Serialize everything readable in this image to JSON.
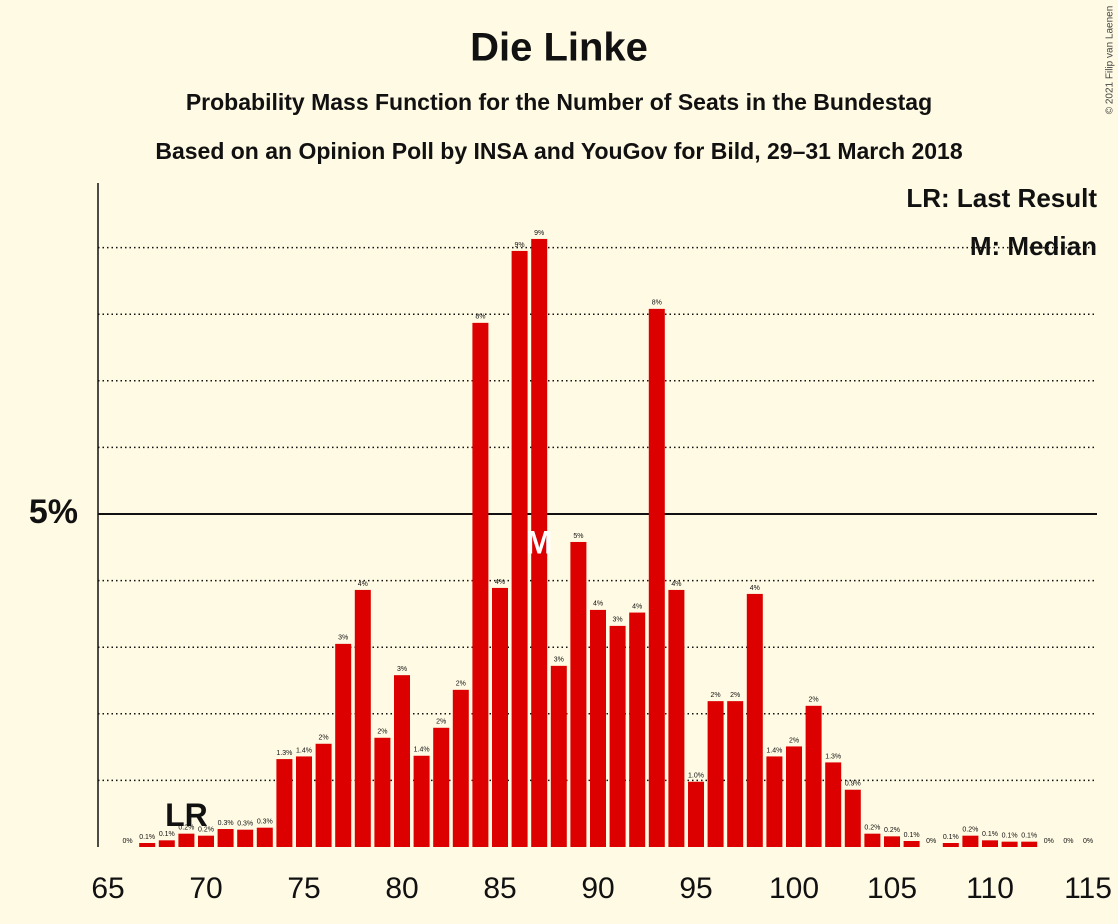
{
  "chart_data": {
    "type": "bar",
    "title": "Die Linke",
    "subtitle": "Probability Mass Function for the Number of Seats in the Bundestag",
    "subtitle2": "Based on an Opinion Poll by INSA and YouGov for Bild, 29–31 March 2018",
    "copyright": "© 2021 Filip van Laenen",
    "legend": [
      "LR: Last Result",
      "M: Median"
    ],
    "color": "#dd0000",
    "x": [
      66,
      67,
      68,
      69,
      70,
      71,
      72,
      73,
      74,
      75,
      76,
      77,
      78,
      79,
      80,
      81,
      82,
      83,
      84,
      85,
      86,
      87,
      88,
      89,
      90,
      91,
      92,
      93,
      94,
      95,
      96,
      97,
      98,
      99,
      100,
      101,
      102,
      103,
      104,
      105,
      106,
      107,
      108,
      109,
      110,
      111,
      112,
      113,
      114,
      115
    ],
    "values": [
      0,
      0.06,
      0.1,
      0.2,
      0.17,
      0.27,
      0.26,
      0.29,
      1.32,
      1.36,
      1.55,
      3.05,
      3.86,
      1.64,
      2.58,
      1.37,
      1.79,
      2.36,
      7.87,
      3.89,
      8.95,
      9.13,
      2.72,
      4.58,
      3.56,
      3.32,
      3.52,
      8.08,
      3.86,
      0.98,
      2.19,
      2.19,
      3.8,
      1.36,
      1.51,
      2.12,
      1.27,
      0.86,
      0.2,
      0.16,
      0.09,
      0,
      0.06,
      0.17,
      0.1,
      0.08,
      0.08,
      0,
      0,
      0
    ],
    "value_labels": [
      "0%",
      "0.1%",
      "0.1%",
      "0.2%",
      "0.2%",
      "0.3%",
      "0.3%",
      "0.3%",
      "1.3%",
      "1.4%",
      "2%",
      "3%",
      "4%",
      "2%",
      "3%",
      "1.4%",
      "2%",
      "2%",
      "8%",
      "4%",
      "9%",
      "9%",
      "3%",
      "5%",
      "4%",
      "3%",
      "4%",
      "8%",
      "4%",
      "1.0%",
      "2%",
      "2%",
      "4%",
      "1.4%",
      "2%",
      "2%",
      "1.3%",
      "0.9%",
      "0.2%",
      "0.2%",
      "0.1%",
      "0%",
      "0.1%",
      "0.2%",
      "0.1%",
      "0.1%",
      "0.1%",
      "0%",
      "0%",
      "0%"
    ],
    "markers": [
      {
        "label": "LR",
        "x": 69
      },
      {
        "label": "M",
        "x": 87
      }
    ],
    "xlim": [
      65,
      115
    ],
    "xticks": [
      65,
      70,
      75,
      80,
      85,
      90,
      95,
      100,
      105,
      110,
      115
    ],
    "ylim": [
      0,
      9.97
    ],
    "yticks": [
      {
        "value": 5,
        "label": "5%"
      }
    ],
    "minor_grid": [
      1,
      2,
      3,
      4,
      6,
      7,
      8,
      9
    ]
  }
}
